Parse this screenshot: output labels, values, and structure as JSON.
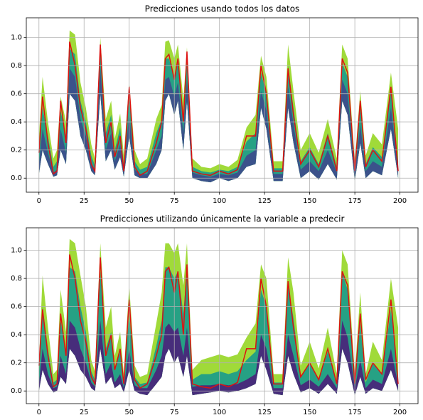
{
  "chart_data": [
    {
      "type": "area",
      "title": "Predicciones usando todos los datos",
      "x": [
        0,
        2,
        5,
        8,
        10,
        12,
        15,
        17,
        20,
        23,
        26,
        29,
        31,
        34,
        37,
        40,
        42,
        45,
        47,
        50,
        53,
        56,
        60,
        65,
        68,
        70,
        72,
        75,
        77,
        80,
        82,
        85,
        90,
        95,
        100,
        105,
        110,
        115,
        120,
        123,
        126,
        130,
        135,
        138,
        141,
        145,
        150,
        155,
        160,
        165,
        168,
        171,
        175,
        178,
        181,
        185,
        190,
        195,
        199
      ],
      "lower": [
        0.03,
        0.2,
        0.1,
        0.01,
        0.02,
        0.2,
        0.1,
        0.6,
        0.55,
        0.3,
        0.2,
        0.05,
        0.02,
        0.6,
        0.12,
        0.2,
        0.06,
        0.15,
        0.01,
        0.3,
        0.02,
        0.0,
        0.0,
        0.1,
        0.2,
        0.55,
        0.6,
        0.45,
        0.55,
        0.2,
        0.55,
        0.0,
        -0.02,
        -0.03,
        0.0,
        -0.02,
        0.0,
        0.08,
        0.1,
        0.5,
        0.35,
        -0.02,
        -0.02,
        0.5,
        0.25,
        0.0,
        0.05,
        -0.01,
        0.1,
        -0.01,
        0.55,
        0.45,
        -0.02,
        0.25,
        0.0,
        0.05,
        0.02,
        0.35,
        0.0
      ],
      "bands": [
        {
          "color": "#a0da39",
          "upper": [
            0.3,
            0.72,
            0.4,
            0.14,
            0.2,
            0.58,
            0.4,
            1.05,
            1.02,
            0.68,
            0.5,
            0.24,
            0.14,
            1.0,
            0.42,
            0.55,
            0.28,
            0.46,
            0.16,
            0.68,
            0.2,
            0.1,
            0.14,
            0.42,
            0.52,
            0.97,
            0.98,
            0.85,
            0.95,
            0.56,
            0.93,
            0.14,
            0.08,
            0.07,
            0.1,
            0.08,
            0.13,
            0.36,
            0.45,
            0.87,
            0.72,
            0.12,
            0.12,
            0.95,
            0.62,
            0.2,
            0.32,
            0.18,
            0.42,
            0.14,
            0.95,
            0.85,
            0.12,
            0.62,
            0.16,
            0.32,
            0.24,
            0.75,
            0.35
          ]
        },
        {
          "color": "#26a184",
          "upper": [
            0.2,
            0.5,
            0.3,
            0.08,
            0.12,
            0.48,
            0.3,
            0.92,
            0.88,
            0.55,
            0.4,
            0.16,
            0.09,
            0.9,
            0.32,
            0.45,
            0.2,
            0.36,
            0.1,
            0.58,
            0.12,
            0.06,
            0.08,
            0.32,
            0.42,
            0.85,
            0.85,
            0.72,
            0.82,
            0.45,
            0.82,
            0.08,
            0.05,
            0.04,
            0.06,
            0.05,
            0.08,
            0.26,
            0.32,
            0.75,
            0.6,
            0.07,
            0.07,
            0.8,
            0.5,
            0.12,
            0.22,
            0.1,
            0.32,
            0.08,
            0.82,
            0.72,
            0.07,
            0.5,
            0.1,
            0.22,
            0.15,
            0.62,
            0.12
          ]
        },
        {
          "color": "#3b528b",
          "upper": [
            0.1,
            0.35,
            0.18,
            0.04,
            0.06,
            0.35,
            0.18,
            0.78,
            0.72,
            0.42,
            0.3,
            0.1,
            0.05,
            0.78,
            0.2,
            0.32,
            0.12,
            0.24,
            0.05,
            0.45,
            0.06,
            0.03,
            0.03,
            0.2,
            0.3,
            0.7,
            0.72,
            0.58,
            0.68,
            0.32,
            0.7,
            0.04,
            0.02,
            0.01,
            0.03,
            0.02,
            0.04,
            0.16,
            0.2,
            0.62,
            0.48,
            0.03,
            0.03,
            0.65,
            0.38,
            0.06,
            0.12,
            0.05,
            0.2,
            0.04,
            0.7,
            0.6,
            0.03,
            0.38,
            0.05,
            0.12,
            0.08,
            0.5,
            0.06
          ]
        }
      ],
      "line": {
        "color": "#dd1111",
        "values": [
          0.18,
          0.58,
          0.25,
          0.03,
          0.05,
          0.55,
          0.25,
          0.97,
          0.8,
          0.5,
          0.35,
          0.1,
          0.05,
          0.95,
          0.25,
          0.4,
          0.15,
          0.3,
          0.05,
          0.65,
          0.08,
          0.02,
          0.05,
          0.25,
          0.4,
          0.85,
          0.88,
          0.7,
          0.85,
          0.4,
          0.9,
          0.05,
          0.03,
          0.02,
          0.05,
          0.03,
          0.06,
          0.3,
          0.3,
          0.8,
          0.6,
          0.05,
          0.05,
          0.78,
          0.45,
          0.1,
          0.2,
          0.08,
          0.3,
          0.05,
          0.85,
          0.75,
          0.05,
          0.55,
          0.08,
          0.2,
          0.12,
          0.65,
          0.05
        ]
      },
      "xlim": [
        -7,
        210
      ],
      "xticks": [
        0,
        25,
        50,
        75,
        100,
        125,
        150,
        175,
        200
      ],
      "ylim": [
        -0.1,
        1.14
      ],
      "yticks": [
        {
          "value": 0,
          "label": "0.0"
        },
        0.2,
        0.4,
        0.6,
        0.8,
        {
          "value": 1,
          "label": "1.0"
        }
      ],
      "grid": true
    },
    {
      "type": "area",
      "title": "Predicciones utilizando únicamente la variable a predecir",
      "x": [
        0,
        2,
        5,
        8,
        10,
        12,
        15,
        17,
        20,
        23,
        26,
        29,
        31,
        34,
        37,
        40,
        42,
        45,
        47,
        50,
        53,
        56,
        60,
        65,
        68,
        70,
        72,
        75,
        77,
        80,
        82,
        85,
        90,
        95,
        100,
        105,
        110,
        115,
        120,
        123,
        126,
        130,
        135,
        138,
        141,
        145,
        150,
        155,
        160,
        165,
        168,
        171,
        175,
        178,
        181,
        185,
        190,
        195,
        199
      ],
      "lower": [
        0.0,
        0.15,
        0.05,
        -0.01,
        0.0,
        0.1,
        0.05,
        0.3,
        0.25,
        0.15,
        0.1,
        0.02,
        0.0,
        0.3,
        0.05,
        0.1,
        0.02,
        0.05,
        -0.01,
        0.15,
        0.0,
        -0.02,
        -0.03,
        0.05,
        0.1,
        0.25,
        0.3,
        0.2,
        0.25,
        0.1,
        0.25,
        -0.03,
        -0.02,
        -0.01,
        0.0,
        -0.01,
        0.0,
        0.02,
        0.05,
        0.25,
        0.15,
        -0.02,
        -0.03,
        0.25,
        0.12,
        -0.01,
        0.02,
        -0.02,
        0.05,
        -0.02,
        0.3,
        0.2,
        -0.03,
        0.1,
        -0.02,
        0.02,
        0.0,
        0.15,
        0.0
      ],
      "bands": [
        {
          "color": "#a0da39",
          "upper": [
            0.2,
            0.82,
            0.45,
            0.12,
            0.15,
            0.72,
            0.42,
            1.08,
            1.05,
            0.82,
            0.6,
            0.22,
            0.14,
            1.05,
            0.45,
            0.6,
            0.25,
            0.42,
            0.12,
            0.75,
            0.18,
            0.1,
            0.12,
            0.48,
            0.7,
            1.05,
            1.05,
            0.98,
            1.05,
            0.75,
            1.05,
            0.15,
            0.22,
            0.24,
            0.26,
            0.24,
            0.26,
            0.38,
            0.48,
            0.9,
            0.8,
            0.12,
            0.12,
            0.95,
            0.7,
            0.18,
            0.35,
            0.16,
            0.45,
            0.12,
            1.0,
            0.9,
            0.12,
            0.7,
            0.12,
            0.35,
            0.22,
            0.8,
            0.45
          ]
        },
        {
          "color": "#26a184",
          "upper": [
            0.12,
            0.6,
            0.3,
            0.06,
            0.08,
            0.5,
            0.28,
            0.88,
            0.85,
            0.6,
            0.42,
            0.14,
            0.08,
            0.85,
            0.3,
            0.42,
            0.15,
            0.28,
            0.06,
            0.55,
            0.1,
            0.05,
            0.06,
            0.32,
            0.5,
            0.88,
            0.88,
            0.8,
            0.85,
            0.55,
            0.88,
            0.08,
            0.12,
            0.12,
            0.14,
            0.12,
            0.14,
            0.22,
            0.28,
            0.72,
            0.6,
            0.06,
            0.06,
            0.75,
            0.52,
            0.1,
            0.2,
            0.08,
            0.28,
            0.06,
            0.85,
            0.72,
            0.06,
            0.48,
            0.06,
            0.2,
            0.12,
            0.58,
            0.1
          ]
        },
        {
          "color": "#472d7b",
          "upper": [
            0.05,
            0.3,
            0.12,
            0.02,
            0.03,
            0.25,
            0.12,
            0.5,
            0.45,
            0.3,
            0.2,
            0.06,
            0.03,
            0.5,
            0.12,
            0.2,
            0.06,
            0.12,
            0.02,
            0.3,
            0.04,
            0.02,
            0.02,
            0.15,
            0.25,
            0.45,
            0.48,
            0.42,
            0.45,
            0.25,
            0.45,
            0.03,
            0.04,
            0.04,
            0.05,
            0.04,
            0.05,
            0.08,
            0.12,
            0.4,
            0.3,
            0.02,
            0.02,
            0.4,
            0.25,
            0.04,
            0.08,
            0.03,
            0.12,
            0.02,
            0.5,
            0.38,
            0.02,
            0.22,
            0.02,
            0.08,
            0.05,
            0.3,
            0.04
          ]
        }
      ],
      "line": {
        "color": "#dd1111",
        "values": [
          0.18,
          0.58,
          0.25,
          0.03,
          0.05,
          0.55,
          0.25,
          0.97,
          0.8,
          0.5,
          0.35,
          0.1,
          0.05,
          0.95,
          0.25,
          0.4,
          0.15,
          0.3,
          0.05,
          0.65,
          0.08,
          0.02,
          0.05,
          0.25,
          0.4,
          0.85,
          0.88,
          0.7,
          0.85,
          0.4,
          0.9,
          0.05,
          0.03,
          0.02,
          0.05,
          0.03,
          0.06,
          0.3,
          0.3,
          0.8,
          0.6,
          0.05,
          0.05,
          0.78,
          0.45,
          0.1,
          0.2,
          0.08,
          0.3,
          0.05,
          0.85,
          0.75,
          0.05,
          0.55,
          0.08,
          0.2,
          0.12,
          0.65,
          0.05
        ]
      },
      "xlim": [
        -7,
        210
      ],
      "xticks": [
        0,
        25,
        50,
        75,
        100,
        125,
        150,
        175,
        200
      ],
      "ylim": [
        -0.09,
        1.16
      ],
      "yticks": [
        {
          "value": 0,
          "label": "0.0"
        },
        0.2,
        0.4,
        0.6,
        0.8,
        {
          "value": 1,
          "label": "1.0"
        }
      ],
      "grid": true
    }
  ]
}
